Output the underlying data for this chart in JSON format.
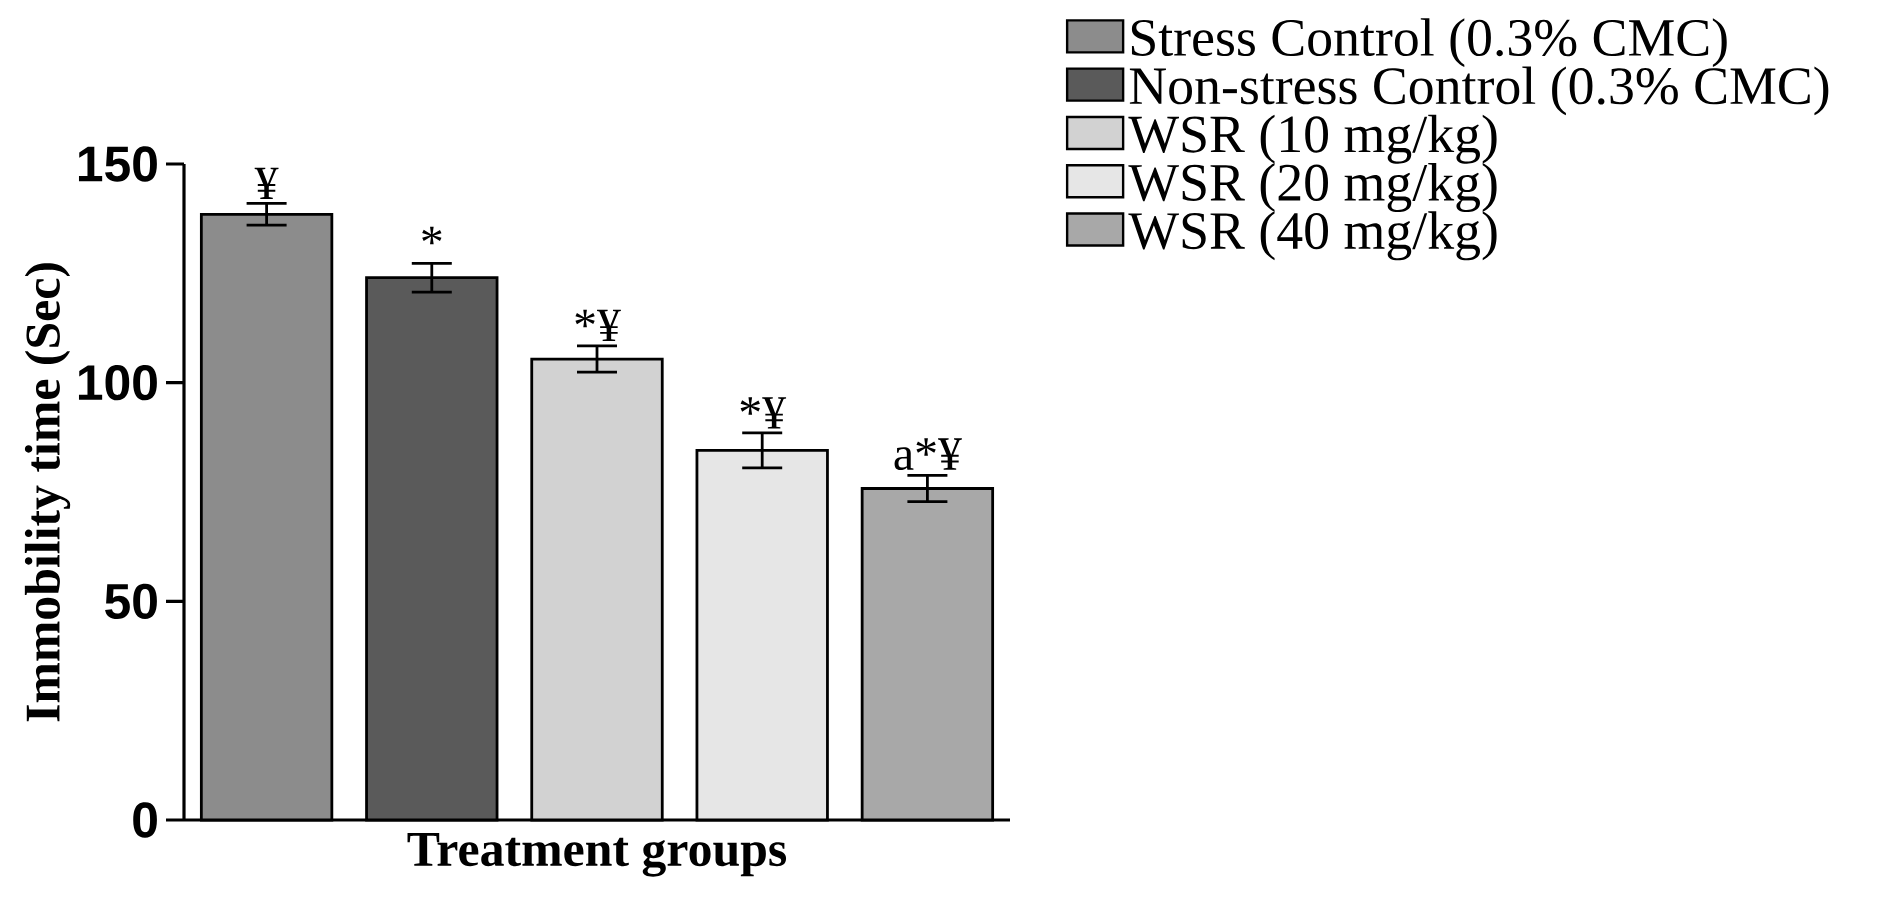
{
  "chart_data": {
    "type": "bar",
    "xlabel": "Treatment groups",
    "ylabel": "Immobility time (Sec)",
    "categories": [
      null,
      null,
      null,
      null,
      null
    ],
    "series": [
      {
        "name": "Stress Control (0.3% CMC)",
        "color": "#8c8c8c",
        "values": [
          138.5,
          null,
          null,
          null,
          null
        ],
        "errors": [
          2.5,
          null,
          null,
          null,
          null
        ]
      },
      {
        "name": "Non-stress Control (0.3% CMC)",
        "color": "#5a5a5a",
        "values": [
          null,
          124,
          null,
          null,
          null
        ],
        "errors": [
          null,
          3.3,
          null,
          null,
          null
        ]
      },
      {
        "name": "WSR (10 mg/kg)",
        "color": "#d2d2d2",
        "values": [
          null,
          null,
          105.4,
          null,
          null
        ],
        "errors": [
          null,
          null,
          3,
          null,
          null
        ]
      },
      {
        "name": "WSR (20 mg/kg)",
        "color": "#e6e6e6",
        "values": [
          null,
          null,
          null,
          84.5,
          null
        ],
        "errors": [
          null,
          null,
          null,
          4,
          null
        ]
      },
      {
        "name": "WSR (40 mg/kg)",
        "color": "#a8a8a8",
        "values": [
          null,
          null,
          null,
          null,
          75.8
        ],
        "errors": [
          null,
          null,
          null,
          null,
          3
        ]
      }
    ],
    "annotations": [
      {
        "text": "¥",
        "y": 141
      },
      {
        "text": "*",
        "y": 127.5
      },
      {
        "text": "*¥",
        "y": 108.5
      },
      {
        "text": "*¥",
        "y": 88.5
      },
      {
        "text": "a*¥",
        "y": 79
      }
    ],
    "ylim": [
      0,
      150
    ],
    "yticks": [
      0,
      50,
      100,
      150
    ],
    "legend": "top right"
  }
}
